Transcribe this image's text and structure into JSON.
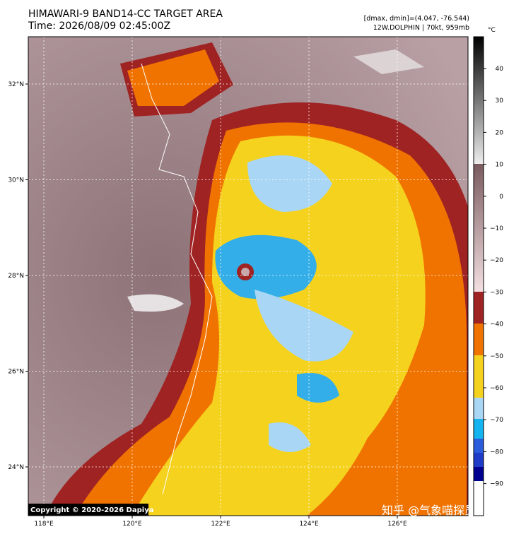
{
  "header": {
    "title": "HIMAWARI-9 BAND14-CC TARGET AREA",
    "time": "Time: 2026/08/09 02:45:00Z",
    "info_1": "[dmax, dmin]=(4.047, -76.544)",
    "info_2": "12W.DOLPHIN | 70kt, 959mb"
  },
  "map": {
    "lat_labels": [
      "32°N",
      "30°N",
      "28°N",
      "26°N",
      "24°N"
    ],
    "lon_labels": [
      "118°E",
      "120°E",
      "122°E",
      "124°E",
      "126°E"
    ]
  },
  "colorbar": {
    "unit": "°C",
    "ticks": [
      "40",
      "30",
      "20",
      "10",
      "0",
      "−10",
      "−20",
      "−30",
      "−40",
      "−50",
      "−60",
      "−70",
      "−80",
      "−90"
    ]
  },
  "copyright": "Copyright © 2020-2026 Dapiya",
  "watermark": "知乎 @气象喵探员"
}
